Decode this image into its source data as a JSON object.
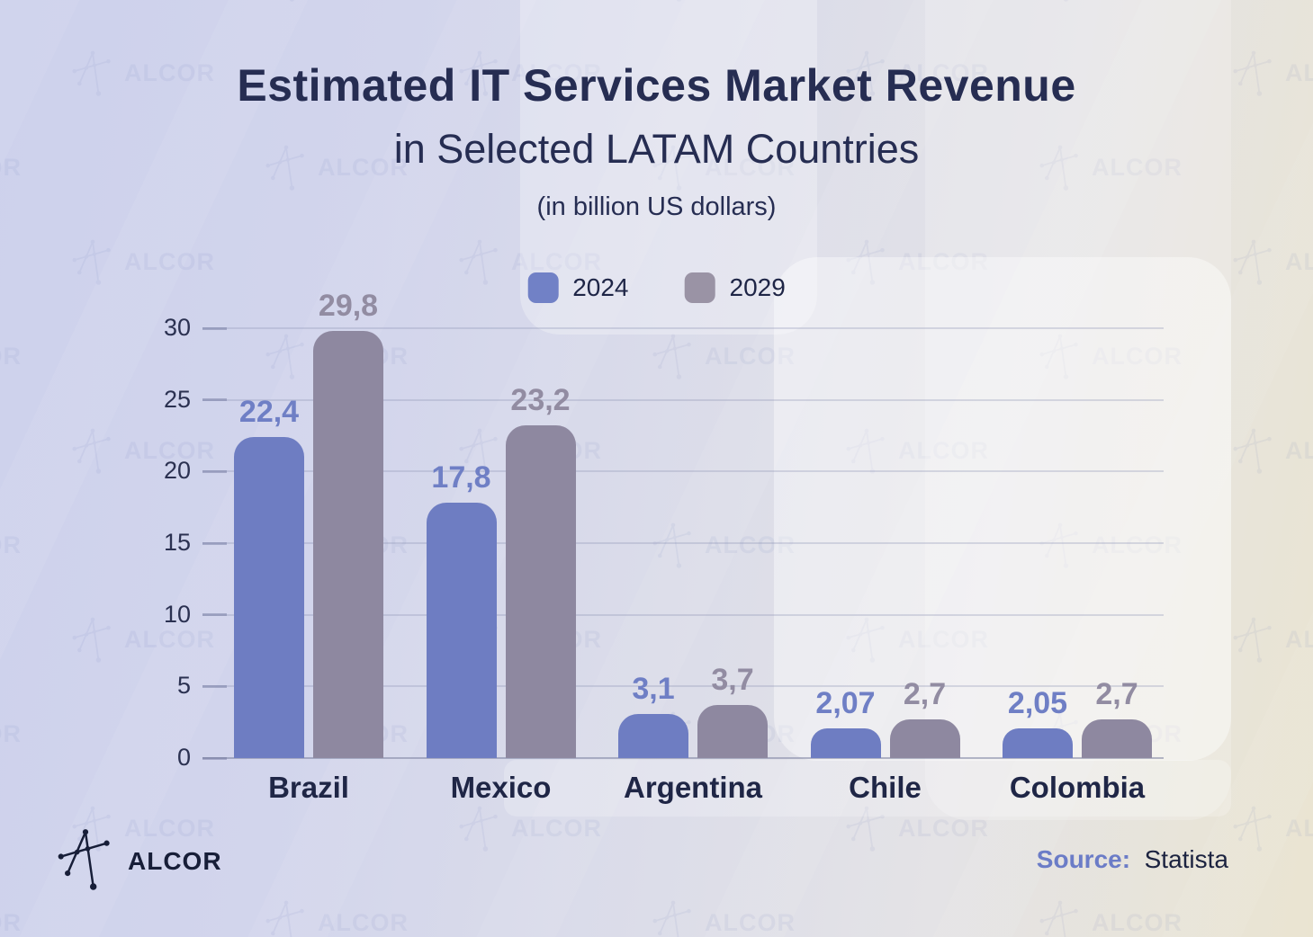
{
  "title": {
    "line1": "Estimated IT Services Market Revenue",
    "line2": "in Selected LATAM Countries",
    "line3": "(in billion US dollars)"
  },
  "legend": [
    {
      "label": "2024",
      "color": "#7181c6"
    },
    {
      "label": "2029",
      "color": "#9a93a5"
    }
  ],
  "chart_data": {
    "type": "bar",
    "title": "Estimated IT Services Market Revenue in Selected LATAM Countries",
    "unit": "billion US dollars",
    "categories": [
      "Brazil",
      "Mexico",
      "Argentina",
      "Chile",
      "Colombia"
    ],
    "series": [
      {
        "name": "2024",
        "color": "#6e7dc2",
        "label_color": "#6f7fc5",
        "values": [
          22.4,
          17.8,
          3.1,
          2.07,
          2.05
        ],
        "labels": [
          "22,4",
          "17,8",
          "3,1",
          "2,07",
          "2,05"
        ]
      },
      {
        "name": "2029",
        "color": "#8e88a0",
        "label_color": "#928ca2",
        "values": [
          29.8,
          23.2,
          3.7,
          2.7,
          2.7
        ],
        "labels": [
          "29,8",
          "23,2",
          "3,7",
          "2,7",
          "2,7"
        ]
      }
    ],
    "ylim": [
      0,
      30
    ],
    "yticks": [
      0,
      5,
      10,
      15,
      20,
      25,
      30
    ],
    "grid": true,
    "legend_position": "top-center",
    "source": "Statista"
  },
  "footer": {
    "brand": "ALCOR",
    "source_label": "Source:",
    "source_value": "Statista"
  },
  "watermark": {
    "text": "ALCOR"
  }
}
